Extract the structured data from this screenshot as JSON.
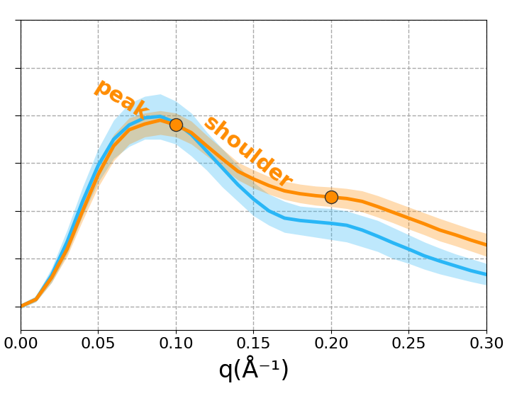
{
  "chart_data": {
    "type": "line",
    "x_label": "q(Å⁻¹)",
    "x": [
      0.0,
      0.01,
      0.02,
      0.03,
      0.04,
      0.05,
      0.06,
      0.07,
      0.08,
      0.09,
      0.1,
      0.11,
      0.12,
      0.13,
      0.14,
      0.15,
      0.16,
      0.17,
      0.18,
      0.19,
      0.2,
      0.21,
      0.22,
      0.23,
      0.24,
      0.25,
      0.26,
      0.27,
      0.28,
      0.29,
      0.3
    ],
    "series": [
      {
        "color": "#29b6f6",
        "values": [
          0.0,
          0.15,
          0.65,
          1.35,
          2.2,
          2.95,
          3.5,
          3.8,
          3.95,
          3.98,
          3.85,
          3.6,
          3.25,
          2.9,
          2.55,
          2.25,
          2.0,
          1.85,
          1.8,
          1.77,
          1.74,
          1.7,
          1.6,
          1.47,
          1.33,
          1.2,
          1.06,
          0.95,
          0.85,
          0.75,
          0.67
        ],
        "lower": [
          -0.05,
          0.1,
          0.5,
          1.1,
          1.9,
          2.6,
          3.1,
          3.35,
          3.5,
          3.5,
          3.4,
          3.15,
          2.85,
          2.5,
          2.2,
          1.9,
          1.7,
          1.55,
          1.5,
          1.45,
          1.4,
          1.35,
          1.25,
          1.15,
          1.0,
          0.9,
          0.78,
          0.68,
          0.6,
          0.52,
          0.45
        ],
        "upper": [
          0.05,
          0.22,
          0.8,
          1.6,
          2.5,
          3.3,
          3.9,
          4.25,
          4.4,
          4.45,
          4.3,
          4.05,
          3.65,
          3.3,
          2.95,
          2.6,
          2.35,
          2.2,
          2.1,
          2.07,
          2.05,
          2.0,
          1.9,
          1.8,
          1.65,
          1.5,
          1.35,
          1.22,
          1.1,
          1.0,
          0.9
        ]
      },
      {
        "color": "#ff8c00",
        "values": [
          0.0,
          0.15,
          0.6,
          1.2,
          2.0,
          2.76,
          3.36,
          3.7,
          3.82,
          3.9,
          3.8,
          3.64,
          3.36,
          3.09,
          2.83,
          2.67,
          2.53,
          2.42,
          2.36,
          2.32,
          2.29,
          2.26,
          2.2,
          2.09,
          1.97,
          1.85,
          1.73,
          1.6,
          1.5,
          1.39,
          1.29
        ],
        "lower": [
          -0.03,
          0.1,
          0.5,
          1.05,
          1.8,
          2.5,
          3.05,
          3.4,
          3.55,
          3.6,
          3.55,
          3.4,
          3.15,
          2.9,
          2.65,
          2.48,
          2.35,
          2.24,
          2.17,
          2.12,
          2.09,
          2.05,
          1.98,
          1.87,
          1.75,
          1.62,
          1.5,
          1.37,
          1.27,
          1.16,
          1.05
        ],
        "upper": [
          0.03,
          0.2,
          0.7,
          1.35,
          2.2,
          3.0,
          3.6,
          3.95,
          4.05,
          4.1,
          4.05,
          3.88,
          3.58,
          3.3,
          3.02,
          2.86,
          2.72,
          2.62,
          2.56,
          2.52,
          2.5,
          2.47,
          2.42,
          2.32,
          2.2,
          2.08,
          1.96,
          1.84,
          1.73,
          1.62,
          1.53
        ]
      }
    ],
    "annotations": [
      {
        "text": "peak",
        "x": 0.1,
        "y": 3.8,
        "color": "#ff8c00"
      },
      {
        "text": "shoulder",
        "x": 0.2,
        "y": 2.29,
        "color": "#ff8c00"
      }
    ],
    "xlim": [
      0.0,
      0.3
    ],
    "xticks": [
      {
        "value": 0.0,
        "label": "0.00"
      },
      {
        "value": 0.05,
        "label": "0.05"
      },
      {
        "value": 0.1,
        "label": "0.10"
      },
      {
        "value": 0.15,
        "label": "0.15"
      },
      {
        "value": 0.2,
        "label": "0.20"
      },
      {
        "value": 0.25,
        "label": "0.25"
      },
      {
        "value": 0.3,
        "label": "0.30"
      }
    ],
    "ylim": [
      -0.5,
      6.0
    ],
    "yticks": [
      0,
      1,
      2,
      3,
      4,
      5,
      6
    ],
    "grid": true,
    "tick_labels": "x"
  }
}
